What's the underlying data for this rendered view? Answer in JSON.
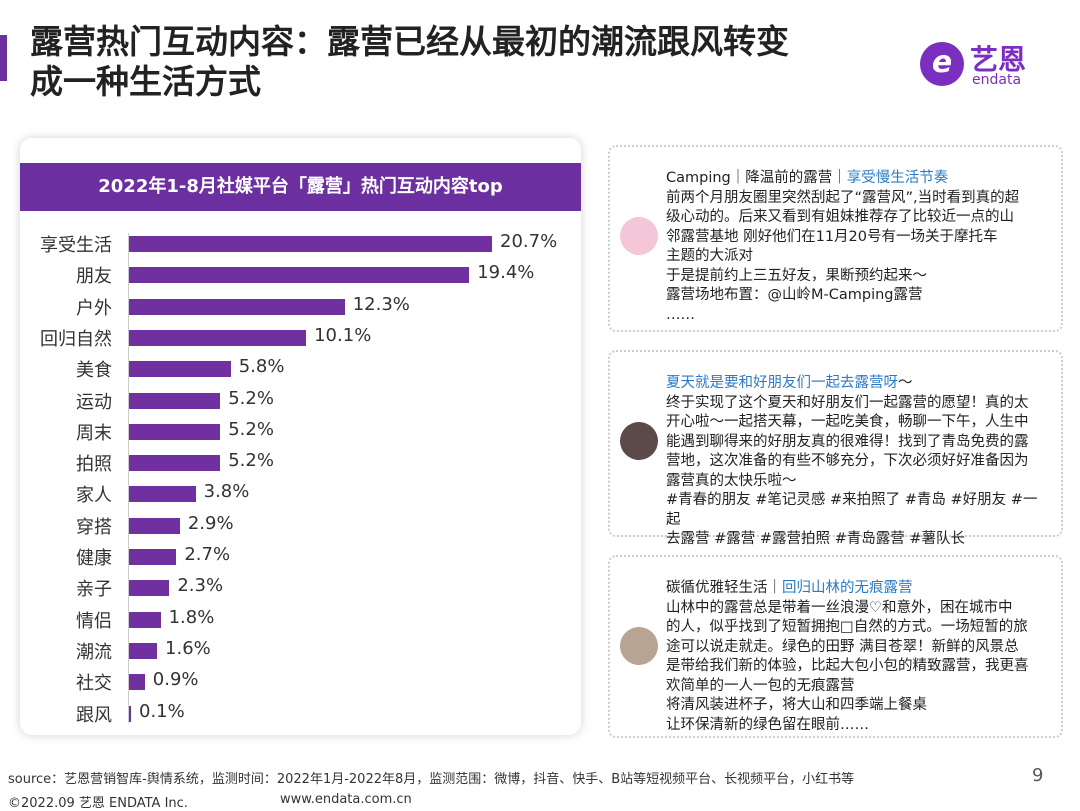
{
  "header": {
    "title_line1": "露营热门互动内容：露营已经从最初的潮流跟风转变",
    "title_line2": "成一种生活方式",
    "logo_cn": "艺恩",
    "logo_en": "endata",
    "accent_color": "#6b2fa0"
  },
  "chart_data": {
    "type": "bar",
    "orientation": "horizontal",
    "title": "2022年1-8月社媒平台「露营」热门互动内容top",
    "categories": [
      "享受生活",
      "朋友",
      "户外",
      "回归自然",
      "美食",
      "运动",
      "周末",
      "拍照",
      "家人",
      "穿搭",
      "健康",
      "亲子",
      "情侣",
      "潮流",
      "社交",
      "跟风"
    ],
    "values": [
      20.7,
      19.4,
      12.3,
      10.1,
      5.8,
      5.2,
      5.2,
      5.2,
      3.8,
      2.9,
      2.7,
      2.3,
      1.8,
      1.6,
      0.9,
      0.1
    ],
    "labels": [
      "20.7%",
      "19.4%",
      "12.3%",
      "10.1%",
      "5.8%",
      "5.2%",
      "5.2%",
      "5.2%",
      "3.8%",
      "2.9%",
      "2.7%",
      "2.3%",
      "1.8%",
      "1.6%",
      "0.9%",
      "0.1%"
    ],
    "unit": "%",
    "bar_color": "#7030a0",
    "grid": false
  },
  "posts": [
    {
      "head": "Camping｜降温前的露营｜",
      "head_link": "享受慢生活节奏",
      "lines": [
        "前两个月朋友圈里突然刮起了“露营风”,当时看到真的超",
        "级心动的。后来又看到有姐妹推荐存了比较近一点的山",
        "邻露营基地 刚好他们在11月20号有一场关于摩托车",
        "主题的大派对",
        "于是提前约上三五好友，果断预约起来～",
        "露营场地布置：@山岭M-Camping露营",
        "……"
      ]
    },
    {
      "head": "",
      "head_link": "夏天就是要和好朋友们一起去露营呀",
      "head_tail": "～",
      "lines": [
        "终于实现了这个夏天和好朋友们一起露营的愿望！真的太",
        "开心啦～一起搭天幕，一起吃美食，畅聊一下午，人生中",
        "能遇到聊得来的好朋友真的很难得！找到了青岛免费的露",
        "营地，这次准备的有些不够充分，下次必须好好准备因为",
        "露营真的太快乐啦～",
        "#青春的朋友 #笔记灵感 #来拍照了 #青岛 #好朋友 #一起",
        "去露营 #露营 #露营拍照 #青岛露营 #薯队长"
      ]
    },
    {
      "head": "碳循优雅轻生活｜",
      "head_link": "回归山林的无痕露营",
      "lines": [
        "山林中的露营总是带着一丝浪漫♡和意外，困在城市中",
        "的人，似乎找到了短暂拥抱□自然的方式。一场短暂的旅",
        "途可以说走就走。绿色的田野 满目苍翠！新鲜的风景总",
        "是带给我们新的体验，比起大包小包的精致露营，我更喜",
        "欢简单的一人一包的无痕露营",
        "将清风装进杯子，将大山和四季端上餐桌",
        "让环保清新的绿色留在眼前……"
      ]
    }
  ],
  "footer": {
    "source": "source：艺恩营销智库-舆情系统，监测时间：2022年1月-2022年8月，监测范围：微博，抖音、快手、B站等短视频平台、长视频平台，小红书等",
    "copyright": "©2022.09 艺恩 ENDATA Inc.",
    "website": "www.endata.com.cn",
    "page": "9"
  }
}
